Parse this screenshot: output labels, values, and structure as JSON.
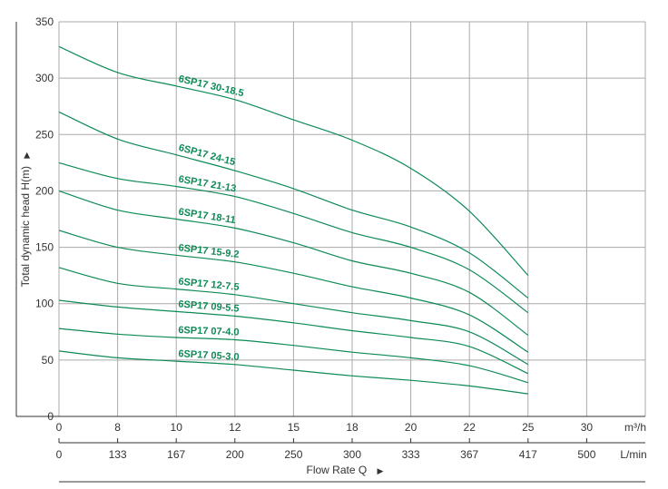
{
  "chart_data": {
    "type": "line",
    "ylabel": "Total dynamic head H(m)",
    "xlabel": "Flow Rate Q",
    "x_unit": "m³/h",
    "x2_unit": "L/min",
    "xlim": [
      0,
      35
    ],
    "ylim": [
      0,
      350
    ],
    "grid": true,
    "x_ticks": [
      "0",
      "8",
      "10",
      "12",
      "15",
      "18",
      "20",
      "22",
      "25",
      "30"
    ],
    "x2_ticks": [
      "0",
      "133",
      "167",
      "200",
      "250",
      "300",
      "333",
      "367",
      "417",
      "500"
    ],
    "y_ticks": [
      "0",
      "50",
      "100",
      "150",
      "200",
      "250",
      "300",
      "350"
    ],
    "colors": {
      "curve": "#0d8a55",
      "grid": "#aaaaaa",
      "axis": "#333333"
    },
    "series": [
      {
        "name": "6SP17 30-18.5",
        "x": [
          0,
          8,
          10,
          12,
          15,
          18,
          20,
          22,
          25
        ],
        "y": [
          328,
          305,
          293,
          281,
          263,
          245,
          220,
          182,
          125
        ]
      },
      {
        "name": "6SP17 24-15",
        "x": [
          0,
          8,
          10,
          12,
          15,
          18,
          20,
          22,
          25
        ],
        "y": [
          270,
          246,
          232,
          218,
          202,
          183,
          168,
          145,
          105
        ]
      },
      {
        "name": "6SP17 21-13",
        "x": [
          0,
          8,
          10,
          12,
          15,
          18,
          20,
          22,
          25
        ],
        "y": [
          225,
          211,
          204,
          195,
          180,
          163,
          150,
          130,
          92
        ]
      },
      {
        "name": "6SP17 18-11",
        "x": [
          0,
          8,
          10,
          12,
          15,
          18,
          20,
          22,
          25
        ],
        "y": [
          200,
          183,
          175,
          167,
          154,
          138,
          127,
          110,
          72
        ]
      },
      {
        "name": "6SP17 15-9.2",
        "x": [
          0,
          8,
          10,
          12,
          15,
          18,
          20,
          22,
          25
        ],
        "y": [
          165,
          150,
          143,
          137,
          127,
          115,
          105,
          90,
          57
        ]
      },
      {
        "name": "6SP17 12-7.5",
        "x": [
          0,
          8,
          10,
          12,
          15,
          18,
          20,
          22,
          25
        ],
        "y": [
          132,
          118,
          113,
          108,
          100,
          92,
          85,
          75,
          46
        ]
      },
      {
        "name": "6SP17 09-5.5",
        "x": [
          0,
          8,
          10,
          12,
          15,
          18,
          20,
          22,
          25
        ],
        "y": [
          103,
          97,
          93,
          89,
          83,
          76,
          70,
          62,
          38
        ]
      },
      {
        "name": "6SP17 07-4.0",
        "x": [
          0,
          8,
          10,
          12,
          15,
          18,
          20,
          22,
          25
        ],
        "y": [
          78,
          73,
          70,
          68,
          63,
          57,
          52,
          45,
          30
        ]
      },
      {
        "name": "6SP17 05-3.0",
        "x": [
          0,
          8,
          10,
          12,
          15,
          18,
          20,
          22,
          25
        ],
        "y": [
          58,
          52,
          49,
          46,
          41,
          36,
          32,
          27,
          20
        ]
      }
    ]
  }
}
